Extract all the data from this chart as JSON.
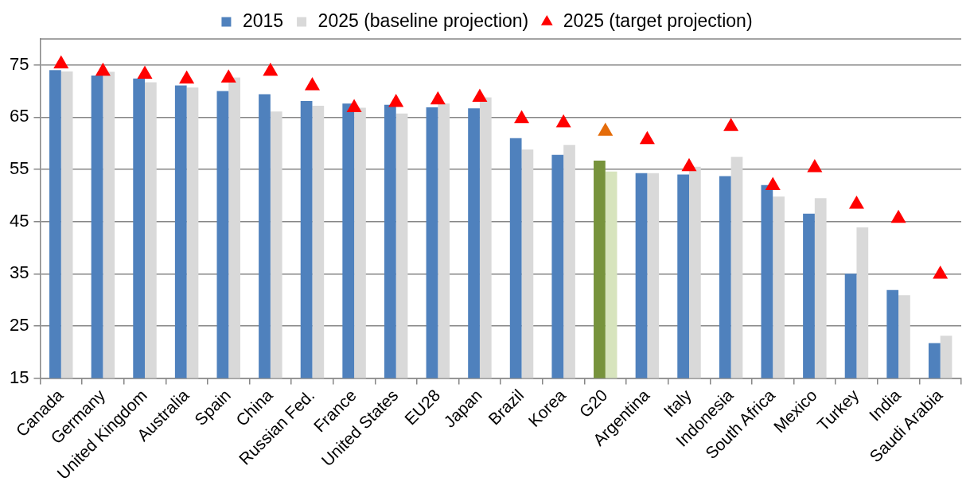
{
  "chart_data": {
    "type": "bar",
    "categories": [
      "Canada",
      "Germany",
      "United Kingdom",
      "Australia",
      "Spain",
      "China",
      "Russian Fed.",
      "France",
      "United States",
      "EU28",
      "Japan",
      "Brazil",
      "Korea",
      "G20",
      "Argentina",
      "Italy",
      "Indonesia",
      "South Africa",
      "Mexico",
      "Turkey",
      "India",
      "Saudi Arabia"
    ],
    "series": [
      {
        "name": "2015",
        "color": "#4f81bd",
        "colors": [
          "#4f81bd",
          "#4f81bd",
          "#4f81bd",
          "#4f81bd",
          "#4f81bd",
          "#4f81bd",
          "#4f81bd",
          "#4f81bd",
          "#4f81bd",
          "#4f81bd",
          "#4f81bd",
          "#4f81bd",
          "#4f81bd",
          "#77933c",
          "#4f81bd",
          "#4f81bd",
          "#4f81bd",
          "#4f81bd",
          "#4f81bd",
          "#4f81bd",
          "#4f81bd",
          "#4f81bd"
        ],
        "values": [
          74.0,
          73.0,
          72.4,
          71.1,
          70.0,
          69.4,
          68.1,
          67.6,
          67.4,
          66.9,
          66.7,
          61.0,
          57.8,
          56.7,
          54.3,
          54.0,
          53.7,
          52.0,
          46.5,
          35.0,
          31.9,
          21.7
        ]
      },
      {
        "name": "2025 (baseline projection)",
        "color": "#d9d9d9",
        "colors": [
          "#d9d9d9",
          "#d9d9d9",
          "#d9d9d9",
          "#d9d9d9",
          "#d9d9d9",
          "#d9d9d9",
          "#d9d9d9",
          "#d9d9d9",
          "#d9d9d9",
          "#d9d9d9",
          "#d9d9d9",
          "#d9d9d9",
          "#d9d9d9",
          "#d7e4bd",
          "#d9d9d9",
          "#d9d9d9",
          "#d9d9d9",
          "#d9d9d9",
          "#d9d9d9",
          "#d9d9d9",
          "#d9d9d9",
          "#d9d9d9"
        ],
        "values": [
          73.8,
          73.7,
          71.7,
          70.7,
          72.6,
          66.1,
          67.2,
          66.8,
          65.7,
          67.6,
          68.8,
          58.8,
          59.7,
          54.6,
          54.3,
          55.5,
          57.4,
          49.8,
          49.5,
          43.9,
          30.9,
          23.1
        ]
      },
      {
        "name": "2025 (target projection)",
        "type": "scatter",
        "marker": "triangle",
        "color": "#ff0000",
        "colors": [
          "#ff0000",
          "#ff0000",
          "#ff0000",
          "#ff0000",
          "#ff0000",
          "#ff0000",
          "#ff0000",
          "#ff0000",
          "#ff0000",
          "#ff0000",
          "#ff0000",
          "#ff0000",
          "#ff0000",
          "#e46c0a",
          "#ff0000",
          "#ff0000",
          "#ff0000",
          "#ff0000",
          "#ff0000",
          "#ff0000",
          "#ff0000",
          "#ff0000"
        ],
        "x": [
          "Canada",
          "Germany",
          "United Kingdom",
          "Australia",
          "Spain",
          "China",
          "Russian Fed.",
          "France",
          "United States",
          "EU28",
          "Japan",
          "Brazil",
          "Korea",
          "G20",
          "Argentina",
          "Italy",
          "Indonesia",
          "South Africa",
          "Mexico",
          "Turkey",
          "India",
          "Saudi Arabia"
        ],
        "values": [
          75.2,
          73.8,
          73.2,
          72.3,
          72.5,
          73.8,
          71.0,
          66.8,
          67.8,
          68.3,
          68.8,
          64.7,
          63.9,
          62.3,
          60.7,
          55.5,
          63.2,
          51.9,
          55.3,
          48.3,
          45.6,
          34.9
        ]
      }
    ],
    "ylim": [
      15,
      80
    ],
    "yticks": [
      15,
      25,
      35,
      45,
      55,
      65,
      75
    ],
    "grid": "y",
    "legend": "top"
  }
}
